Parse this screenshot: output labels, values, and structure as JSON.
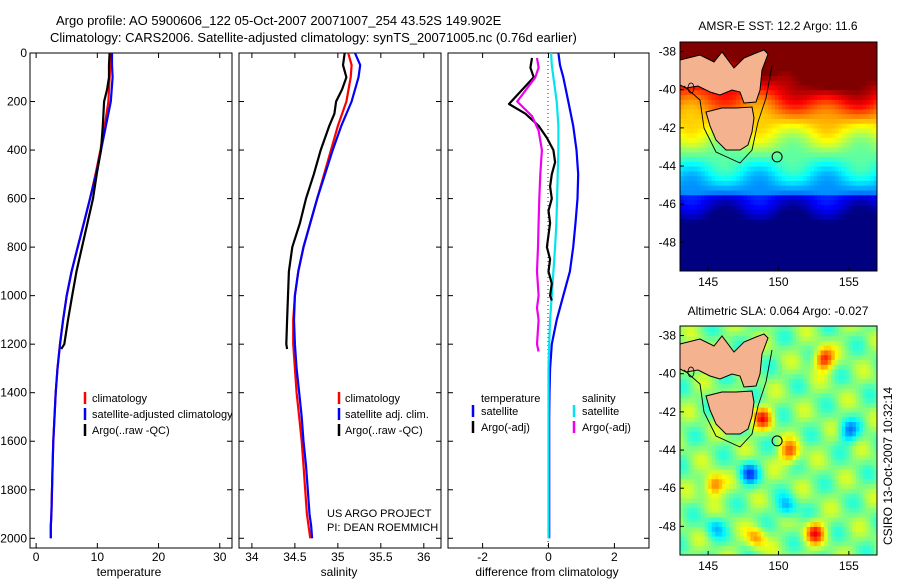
{
  "colors": {
    "climatology": "#ff0000",
    "satellite": "#0000ff",
    "argo": "#000000",
    "satellite_salinity": "#00e5ee",
    "argo_salinity": "#ee00ee",
    "land": "#f4b28f"
  },
  "header": {
    "title_line1": "Argo profile: AO 5900606_122 05-Oct-2007 20071007_254 43.52S 149.902E",
    "title_line2": "Climatology: CARS2006. Satellite-adjusted climatology: synTS_20071005.nc (0.76d earlier)"
  },
  "credits": {
    "line1": "US ARGO PROJECT",
    "line2": "PI: DEAN ROEMMICH",
    "stamp": "CSIRO 13-Oct-2007 10:32:14"
  },
  "chart_data": [
    {
      "id": "temperature",
      "type": "line",
      "xlabel": "temperature",
      "ylabel": "",
      "xlim": [
        -1,
        32
      ],
      "ylim": [
        2040,
        0
      ],
      "xticks": [
        0,
        10,
        20,
        30
      ],
      "yticks": [
        0,
        200,
        400,
        600,
        800,
        1000,
        1200,
        1400,
        1600,
        1800,
        2000
      ],
      "legend": [
        "climatology",
        "satellite-adjusted climatology",
        "Argo(..raw -QC)"
      ],
      "series": [
        {
          "name": "climatology",
          "color": "#ff0000",
          "x": [
            12.1,
            12.1,
            12.0,
            11.8,
            11.2,
            10.5,
            9.7,
            8.8,
            7.8,
            6.8,
            5.8,
            5.0,
            4.4,
            3.9,
            3.5,
            3.2,
            3.0,
            2.8,
            2.7,
            2.6,
            2.5,
            2.4,
            2.4
          ],
          "y": [
            0,
            50,
            100,
            200,
            300,
            400,
            500,
            600,
            700,
            800,
            900,
            1000,
            1100,
            1200,
            1300,
            1400,
            1500,
            1600,
            1700,
            1800,
            1900,
            1950,
            2000
          ]
        },
        {
          "name": "satellite-adjusted climatology",
          "color": "#0000ff",
          "x": [
            12.4,
            12.4,
            12.5,
            12.2,
            11.4,
            10.6,
            9.8,
            8.8,
            7.8,
            6.8,
            5.8,
            5.0,
            4.4,
            3.9,
            3.5,
            3.2,
            3.0,
            2.8,
            2.7,
            2.6,
            2.5,
            2.4,
            2.4
          ],
          "y": [
            0,
            50,
            100,
            200,
            300,
            400,
            500,
            600,
            700,
            800,
            900,
            1000,
            1100,
            1200,
            1300,
            1400,
            1500,
            1600,
            1700,
            1800,
            1900,
            1950,
            2000
          ]
        },
        {
          "name": "Argo(..raw -QC)",
          "color": "#000000",
          "x": [
            12.0,
            11.9,
            11.9,
            11.6,
            11.1,
            10.9,
            10.6,
            9.9,
            9.3,
            8.4,
            7.5,
            6.6,
            5.9,
            5.2,
            4.6,
            4.1
          ],
          "y": [
            0,
            50,
            100,
            150,
            200,
            300,
            400,
            500,
            600,
            700,
            800,
            900,
            1000,
            1100,
            1200,
            1220
          ]
        }
      ]
    },
    {
      "id": "salinity",
      "type": "line",
      "xlabel": "salinity",
      "ylabel": "",
      "xlim": [
        33.85,
        36.2
      ],
      "ylim": [
        2040,
        0
      ],
      "xticks": [
        34,
        34.5,
        35,
        35.5,
        36
      ],
      "yticks": [
        0,
        200,
        400,
        600,
        800,
        1000,
        1200,
        1400,
        1600,
        1800,
        2000
      ],
      "legend": [
        "climatology",
        "satellite adj. clim.",
        "Argo(..raw -QC)"
      ],
      "series": [
        {
          "name": "climatology",
          "color": "#ff0000",
          "x": [
            35.12,
            35.16,
            35.15,
            35.1,
            35.0,
            34.92,
            34.84,
            34.76,
            34.68,
            34.6,
            34.54,
            34.5,
            34.48,
            34.48,
            34.5,
            34.52,
            34.55,
            34.58,
            34.6,
            34.62,
            34.64,
            34.66,
            34.68
          ],
          "y": [
            0,
            50,
            100,
            200,
            300,
            400,
            500,
            600,
            700,
            800,
            900,
            1000,
            1100,
            1200,
            1300,
            1400,
            1500,
            1600,
            1700,
            1800,
            1900,
            1950,
            2000
          ]
        },
        {
          "name": "satellite adj. clim.",
          "color": "#0000ff",
          "x": [
            35.2,
            35.26,
            35.24,
            35.16,
            35.04,
            34.94,
            34.85,
            34.76,
            34.68,
            34.6,
            34.54,
            34.5,
            34.49,
            34.5,
            34.52,
            34.55,
            34.58,
            34.6,
            34.63,
            34.65,
            34.67,
            34.69,
            34.7
          ],
          "y": [
            0,
            50,
            100,
            200,
            300,
            400,
            500,
            600,
            700,
            800,
            900,
            1000,
            1100,
            1200,
            1300,
            1400,
            1500,
            1600,
            1700,
            1800,
            1900,
            1950,
            2000
          ]
        },
        {
          "name": "Argo(..raw -QC)",
          "color": "#000000",
          "x": [
            35.08,
            35.06,
            35.1,
            35.05,
            34.98,
            34.96,
            34.9,
            34.8,
            34.72,
            34.63,
            34.56,
            34.47,
            34.43,
            34.42,
            34.41,
            34.4,
            34.41
          ],
          "y": [
            0,
            50,
            100,
            150,
            200,
            250,
            300,
            400,
            500,
            600,
            700,
            800,
            900,
            1000,
            1100,
            1200,
            1220
          ]
        }
      ]
    },
    {
      "id": "difference",
      "type": "line",
      "xlabel": "difference from climatology",
      "ylabel": "",
      "xlim": [
        -3.05,
        3.05
      ],
      "ylim": [
        2040,
        0
      ],
      "xticks": [
        -2,
        0,
        2
      ],
      "yticks": [
        0,
        200,
        400,
        600,
        800,
        1000,
        1200,
        1400,
        1600,
        1800,
        2000
      ],
      "legend": {
        "temperature_heading": "temperature",
        "salinity_heading": "salinity",
        "entries": [
          "satellite",
          "Argo(-adj)",
          "satellite",
          "Argo(-adj)"
        ]
      },
      "series": [
        {
          "name": "temperature satellite",
          "color": "#0000ff",
          "x": [
            0.3,
            0.35,
            0.45,
            0.6,
            0.75,
            0.85,
            0.9,
            0.88,
            0.82,
            0.75,
            0.65,
            0.45,
            0.25,
            0.1,
            0.05,
            0.03,
            0.02,
            0.02,
            0.02,
            0.02,
            0.02
          ],
          "y": [
            0,
            50,
            100,
            200,
            300,
            400,
            500,
            600,
            700,
            800,
            900,
            1000,
            1100,
            1200,
            1300,
            1400,
            1500,
            1600,
            1700,
            1800,
            2000
          ]
        },
        {
          "name": "salinity satellite",
          "color": "#00e5ee",
          "x": [
            0.08,
            0.1,
            0.15,
            0.25,
            0.3,
            0.3,
            0.28,
            0.26,
            0.24,
            0.2,
            0.15,
            0.1,
            0.05,
            0.02,
            0.0,
            0.0,
            0.0,
            0.0,
            0.0,
            0.0,
            0.0
          ],
          "y": [
            0,
            50,
            100,
            200,
            300,
            400,
            500,
            600,
            700,
            800,
            900,
            1000,
            1100,
            1200,
            1300,
            1400,
            1500,
            1600,
            1700,
            1800,
            2000
          ]
        },
        {
          "name": "temperature Argo(-adj)",
          "color": "#000000",
          "x": [
            -0.5,
            -0.55,
            -0.45,
            -1.2,
            -0.7,
            -0.3,
            -0.05,
            0.15,
            0.2,
            0.1,
            0.05,
            0.1,
            0.0,
            0.05,
            0.0,
            -0.05,
            0.05,
            0.0,
            0.1,
            0.05,
            0.1
          ],
          "y": [
            20,
            60,
            100,
            210,
            250,
            300,
            350,
            400,
            450,
            500,
            550,
            600,
            650,
            700,
            750,
            800,
            850,
            900,
            950,
            1000,
            1020
          ]
        },
        {
          "name": "salinity Argo(-adj)",
          "color": "#ee00ee",
          "x": [
            -0.35,
            -0.3,
            -0.4,
            -0.95,
            -0.5,
            -0.3,
            -0.2,
            -0.25,
            -0.28,
            -0.3,
            -0.32,
            -0.35,
            -0.3,
            -0.35,
            -0.3,
            -0.35,
            -0.3
          ],
          "y": [
            20,
            60,
            100,
            200,
            260,
            320,
            400,
            500,
            600,
            700,
            800,
            900,
            1000,
            1050,
            1100,
            1200,
            1230
          ]
        }
      ]
    },
    {
      "id": "sst_map",
      "type": "heatmap",
      "title": "AMSR-E SST: 12.2  Argo: 11.6",
      "xlim": [
        143,
        157
      ],
      "ylim": [
        -49.5,
        -37.5
      ],
      "xticks": [
        145,
        150,
        155
      ],
      "yticks": [
        -38,
        -40,
        -42,
        -44,
        -46,
        -48
      ],
      "marker": {
        "lon": 149.902,
        "lat": -43.52
      }
    },
    {
      "id": "sla_map",
      "type": "heatmap",
      "title": "Altimetric SLA: 0.064  Argo: -0.027",
      "xlim": [
        143,
        157
      ],
      "ylim": [
        -49.5,
        -37.5
      ],
      "xticks": [
        145,
        150,
        155
      ],
      "yticks": [
        -38,
        -40,
        -42,
        -44,
        -46,
        -48
      ],
      "marker": {
        "lon": 149.902,
        "lat": -43.52
      }
    }
  ]
}
